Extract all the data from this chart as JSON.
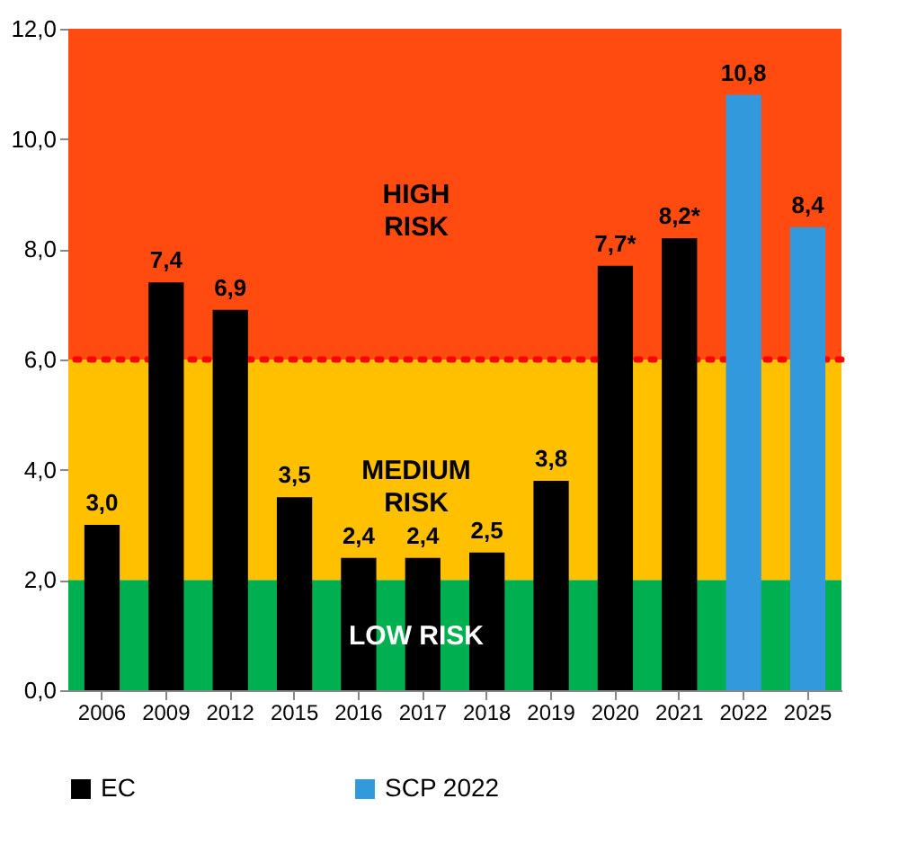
{
  "chart_data": {
    "type": "bar",
    "categories": [
      "2006",
      "2009",
      "2012",
      "2015",
      "2016",
      "2017",
      "2018",
      "2019",
      "2020",
      "2021",
      "2022",
      "2025"
    ],
    "series": [
      {
        "name": "EC",
        "color": "#000000",
        "values": [
          3.0,
          7.4,
          6.9,
          3.5,
          2.4,
          2.4,
          2.5,
          3.8,
          7.7,
          8.2,
          null,
          null
        ],
        "value_labels": [
          "3,0",
          "7,4",
          "6,9",
          "3,5",
          "2,4",
          "2,4",
          "2,5",
          "3,8",
          "7,7*",
          "8,2*",
          null,
          null
        ]
      },
      {
        "name": "SCP 2022",
        "color": "#3399dd",
        "values": [
          null,
          null,
          null,
          null,
          null,
          null,
          null,
          null,
          null,
          null,
          10.8,
          8.4
        ],
        "value_labels": [
          null,
          null,
          null,
          null,
          null,
          null,
          null,
          null,
          null,
          null,
          "10,8",
          "8,4"
        ]
      }
    ],
    "ylim": [
      0,
      12
    ],
    "yticks": [
      {
        "value": 0,
        "label": "0,0"
      },
      {
        "value": 2,
        "label": "2,0"
      },
      {
        "value": 4,
        "label": "4,0"
      },
      {
        "value": 6,
        "label": "6,0"
      },
      {
        "value": 8,
        "label": "8,0"
      },
      {
        "value": 10,
        "label": "10,0"
      },
      {
        "value": 12,
        "label": "12,0"
      }
    ],
    "bands": [
      {
        "axis": "y",
        "from": 0,
        "to": 2,
        "label": "LOW RISK",
        "color": "#00b050"
      },
      {
        "axis": "y",
        "from": 2,
        "to": 6,
        "label": "MEDIUM RISK",
        "color": "#ffc000"
      },
      {
        "axis": "y",
        "from": 6,
        "to": 12,
        "label": "HIGH RISK",
        "color": "#ff4a10"
      }
    ],
    "ref_lines": [
      {
        "axis": "y",
        "value": 6,
        "color": "#ff0000",
        "line_style": "dotted"
      }
    ],
    "legend": "bottom",
    "grid": false
  }
}
